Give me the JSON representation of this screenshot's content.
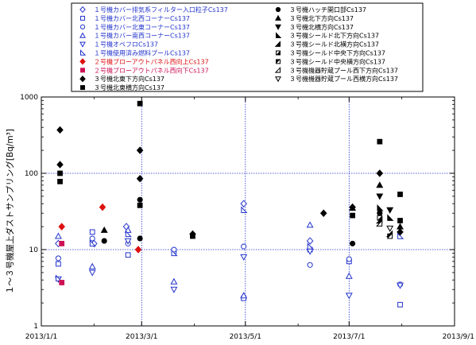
{
  "chart_data": {
    "type": "scatter",
    "title": "",
    "xlabel": "",
    "ylabel": "１～３号機屋上ダストサンプリング[Bq/m³]",
    "y_scale": "log",
    "ylim": [
      1,
      1000
    ],
    "xlim": [
      "2013/1/1",
      "2013/9/1"
    ],
    "x_ticks": [
      "2013/1/1",
      "2013/3/1",
      "2013/5/1",
      "2013/7/1",
      "2013/9/1"
    ],
    "y_ticks": [
      "1",
      "10",
      "100",
      "1000"
    ],
    "grid": "dotted blue lines at major ticks",
    "legend_placement": "top, two columns",
    "series": [
      {
        "name": "１号機カバー排気系フィルター入口粒子Cs137",
        "marker": "diamond",
        "filled": false,
        "color": "#2233cc",
        "points": [
          [
            "2013/1/11",
            12
          ],
          [
            "2013/2/1",
            12
          ],
          [
            "2013/2/20",
            20
          ],
          [
            "2013/4/30",
            40
          ],
          [
            "2013/6/8",
            13
          ]
        ]
      },
      {
        "name": "１号機カバー北西コーナーCs137",
        "marker": "square",
        "filled": false,
        "color": "#2233cc",
        "points": [
          [
            "2013/1/11",
            6.5
          ],
          [
            "2013/1/31",
            17
          ],
          [
            "2013/2/21",
            8.5
          ],
          [
            "2013/3/20",
            9.5
          ],
          [
            "2013/4/30",
            2.3
          ],
          [
            "2013/6/8",
            10
          ],
          [
            "2013/7/1",
            7
          ],
          [
            "2013/7/31",
            1.9
          ]
        ]
      },
      {
        "name": "１号機カバー北東コーナーCs137",
        "marker": "circle",
        "filled": false,
        "color": "#2233cc",
        "points": [
          [
            "2013/1/11",
            7.7
          ],
          [
            "2013/1/31",
            14
          ],
          [
            "2013/2/21",
            12
          ],
          [
            "2013/3/20",
            10
          ],
          [
            "2013/4/30",
            11
          ],
          [
            "2013/6/8",
            6.3
          ],
          [
            "2013/7/1",
            7.5
          ],
          [
            "2013/7/31",
            3.5
          ]
        ]
      },
      {
        "name": "１号機カバー南西コーナーCs137",
        "marker": "triangle-up",
        "filled": false,
        "color": "#2233cc",
        "points": [
          [
            "2013/1/11",
            15
          ],
          [
            "2013/1/31",
            6
          ],
          [
            "2013/2/21",
            18
          ],
          [
            "2013/3/20",
            3.8
          ],
          [
            "2013/4/30",
            2.5
          ],
          [
            "2013/6/8",
            21
          ],
          [
            "2013/7/1",
            4.5
          ]
        ]
      },
      {
        "name": "１号機オペフロCs137",
        "marker": "triangle-down",
        "filled": false,
        "color": "#2233cc",
        "points": [
          [
            "2013/1/11",
            4.1
          ],
          [
            "2013/1/31",
            5
          ],
          [
            "2013/2/21",
            13
          ],
          [
            "2013/3/20",
            3
          ],
          [
            "2013/4/30",
            8
          ],
          [
            "2013/6/8",
            9.5
          ],
          [
            "2013/7/1",
            2.5
          ],
          [
            "2013/7/31",
            3.4
          ]
        ]
      },
      {
        "name": "１号機使用済み燃料プールCs137",
        "marker": "triangle-right",
        "filled": false,
        "color": "#2233cc",
        "points": [
          [
            "2013/1/11",
            4.2
          ],
          [
            "2013/1/31",
            12
          ],
          [
            "2013/2/21",
            16
          ],
          [
            "2013/3/20",
            9
          ],
          [
            "2013/4/30",
            33
          ],
          [
            "2013/6/8",
            11
          ],
          [
            "2013/7/31",
            15
          ]
        ]
      },
      {
        "name": "２号機ブローアウトパネル西向上Cs137",
        "marker": "diamond",
        "filled": true,
        "color": "#dd1111",
        "points": [
          [
            "2013/1/13",
            20
          ],
          [
            "2013/2/6",
            36
          ],
          [
            "2013/2/27",
            10
          ]
        ]
      },
      {
        "name": "２号機ブローアウトパネル西向下Cs137",
        "marker": "square",
        "filled": true,
        "color": "#cc1155",
        "points": [
          [
            "2013/1/13",
            12
          ],
          [
            "2013/1/13",
            3.7
          ]
        ]
      },
      {
        "name": "３号機北東下方向Cs137",
        "marker": "diamond",
        "filled": true,
        "color": "#000000",
        "points": [
          [
            "2013/1/12",
            370
          ],
          [
            "2013/1/12",
            130
          ],
          [
            "2013/2/28",
            200
          ],
          [
            "2013/2/28",
            85
          ],
          [
            "2013/3/31",
            16
          ],
          [
            "2013/6/16",
            30
          ],
          [
            "2013/7/3",
            36
          ],
          [
            "2013/7/19",
            100
          ],
          [
            "2013/7/31",
            17
          ]
        ]
      },
      {
        "name": "３号機北東横方向Cs137",
        "marker": "square",
        "filled": true,
        "color": "#000000",
        "points": [
          [
            "2013/1/12",
            100
          ],
          [
            "2013/1/12",
            78
          ],
          [
            "2013/2/28",
            820
          ],
          [
            "2013/2/28",
            38
          ],
          [
            "2013/3/31",
            15
          ],
          [
            "2013/7/3",
            28
          ],
          [
            "2013/7/19",
            260
          ],
          [
            "2013/7/31",
            53
          ],
          [
            "2013/7/31",
            24
          ]
        ]
      },
      {
        "name": "３号機ハッチ開口部Cs137",
        "marker": "circle",
        "filled": true,
        "color": "#000000",
        "points": [
          [
            "2013/2/7",
            13
          ],
          [
            "2013/2/28",
            45
          ],
          [
            "2013/2/28",
            14
          ],
          [
            "2013/7/3",
            12
          ],
          [
            "2013/7/19",
            30
          ]
        ]
      },
      {
        "name": "３号機北下方向Cs137",
        "marker": "triangle-up",
        "filled": true,
        "color": "#000000",
        "points": [
          [
            "2013/2/7",
            18
          ],
          [
            "2013/7/3",
            35
          ],
          [
            "2013/7/19",
            70
          ],
          [
            "2013/7/31",
            20
          ]
        ]
      },
      {
        "name": "３号機北横方向Cs137",
        "marker": "triangle-down",
        "filled": true,
        "color": "#000000",
        "points": [
          [
            "2013/7/19",
            50
          ],
          [
            "2013/7/25",
            33
          ]
        ]
      },
      {
        "name": "３号機シールド北下方向Cs137",
        "marker": "triangle-right",
        "filled": true,
        "color": "#000000",
        "points": [
          [
            "2013/7/19",
            35
          ],
          [
            "2013/7/25",
            26
          ]
        ]
      },
      {
        "name": "３号機シールド北横方向Cs137",
        "marker": "triangle-left",
        "filled": true,
        "color": "#000000",
        "points": [
          [
            "2013/7/19",
            24
          ],
          [
            "2013/7/25",
            16
          ]
        ]
      },
      {
        "name": "３号機シールド中央下方向Cs137",
        "marker": "square-half",
        "filled": true,
        "color": "#000000",
        "points": [
          [
            "2013/7/19",
            26
          ]
        ]
      },
      {
        "name": "３号機シールド中央横方向Cs137",
        "marker": "square-half-inv",
        "filled": true,
        "color": "#000000",
        "points": [
          [
            "2013/7/25",
            15
          ]
        ]
      },
      {
        "name": "３号機機器貯蔵プール西下方向Cs137",
        "marker": "triangle-left",
        "filled": false,
        "color": "#000000",
        "points": [
          [
            "2013/7/19",
            22
          ]
        ]
      },
      {
        "name": "３号機機器貯蔵プール西横方向Cs137",
        "marker": "triangle-down",
        "filled": false,
        "color": "#000000",
        "points": [
          [
            "2013/7/25",
            19
          ]
        ]
      }
    ]
  }
}
